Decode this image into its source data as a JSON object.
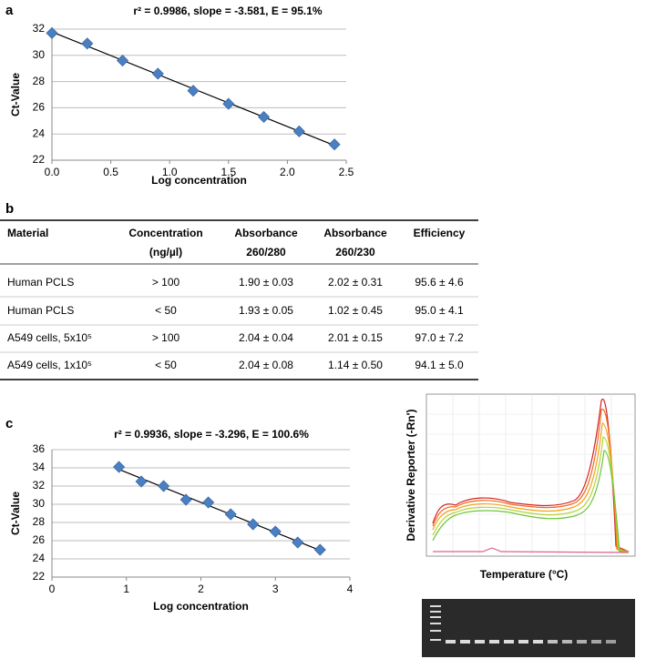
{
  "panel_labels": [
    "a",
    "b",
    "c"
  ],
  "chart_data": [
    {
      "type": "scatter",
      "title": "r² = 0.9986, slope = -3.581, E = 95.1%",
      "xlabel": "Log concentration",
      "ylabel": "Ct-Value",
      "x": [
        0,
        0.3,
        0.6,
        0.9,
        1.2,
        1.5,
        1.8,
        2.1,
        2.4
      ],
      "series": [
        {
          "name": "Ct",
          "color": "#4a7fc1",
          "values": [
            31.7,
            30.9,
            29.6,
            28.6,
            27.3,
            26.3,
            25.3,
            24.2,
            23.2
          ]
        }
      ],
      "xlim": [
        0,
        2.5
      ],
      "xticks": [
        {
          "value": 0,
          "label": "0.0"
        },
        {
          "value": 0.5,
          "label": "0.5"
        },
        {
          "value": 1,
          "label": "1.0"
        },
        {
          "value": 1.5,
          "label": "1.5"
        },
        {
          "value": 2,
          "label": "2.0"
        },
        {
          "value": 2.5,
          "label": "2.5"
        }
      ],
      "ylim": [
        22,
        32
      ],
      "yticks": [
        22,
        24,
        26,
        28,
        30,
        32
      ],
      "grid": true,
      "trendline": true
    },
    {
      "type": "scatter",
      "title": "r² = 0.9936, slope = -3.296, E = 100.6%",
      "xlabel": "Log concentration",
      "ylabel": "Ct-Value",
      "x": [
        0.9,
        1.2,
        1.5,
        1.8,
        2.1,
        2.4,
        2.7,
        3.0,
        3.3,
        3.6
      ],
      "series": [
        {
          "name": "Ct",
          "color": "#4a7fc1",
          "values": [
            34.1,
            32.5,
            32.0,
            30.5,
            30.2,
            28.9,
            27.8,
            27.0,
            25.8,
            25.0
          ]
        }
      ],
      "xlim": [
        0,
        4
      ],
      "xticks": [
        0,
        1,
        2,
        3,
        4
      ],
      "ylim": [
        22,
        36
      ],
      "yticks": [
        22,
        24,
        26,
        28,
        30,
        32,
        34,
        36
      ],
      "grid": true,
      "trendline": true
    }
  ],
  "table": {
    "header": [
      [
        "Material"
      ],
      [
        "Concentration",
        "(ng/µl)"
      ],
      [
        "Absorbance",
        "260/280"
      ],
      [
        "Absorbance",
        "260/230"
      ],
      [
        "Efficiency"
      ]
    ],
    "rows": [
      [
        "Human PCLS",
        "> 100",
        "1.90 ± 0.03",
        "2.02 ± 0.31",
        "95.6 ± 4.6"
      ],
      [
        "Human PCLS",
        "< 50",
        "1.93 ± 0.05",
        "1.02 ± 0.45",
        "95.0 ± 4.1"
      ],
      [
        "A549 cells, 5x10⁵",
        "> 100",
        "2.04 ± 0.04",
        "2.01 ± 0.15",
        "97.0 ± 7.2"
      ],
      [
        "A549 cells, 1x10⁵",
        "< 50",
        "2.04 ± 0.08",
        "1.14 ± 0.50",
        "94.1 ± 5.0"
      ]
    ]
  },
  "melt_curve": {
    "ylabel": "Derivative Reporter (-Rn')",
    "xlabel": "Temperature (°C)"
  }
}
